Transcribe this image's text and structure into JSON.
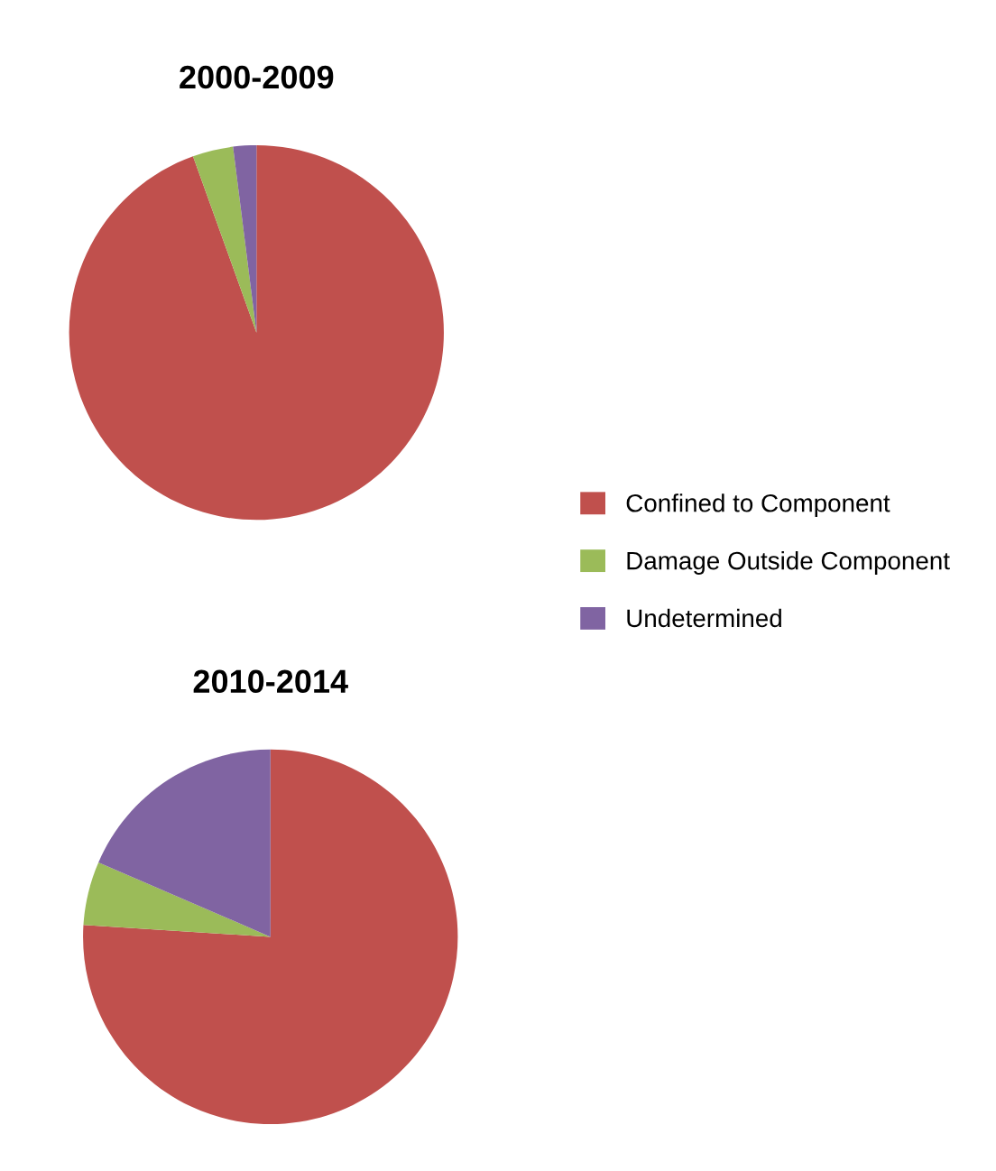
{
  "chart_data": [
    {
      "type": "pie",
      "title": "2000-2009",
      "categories": [
        "Confined to Component",
        "Damage Outside Component",
        "Undetermined"
      ],
      "values": [
        94.5,
        3.5,
        2
      ],
      "colors": [
        "#c0504d",
        "#9bbb59",
        "#8064a2"
      ],
      "legend": "right"
    },
    {
      "type": "pie",
      "title": "2010-2014",
      "values": [
        76,
        5.5,
        18.5
      ],
      "colors": [
        "#c0504d",
        "#9bbb59",
        "#8064a2"
      ]
    }
  ]
}
